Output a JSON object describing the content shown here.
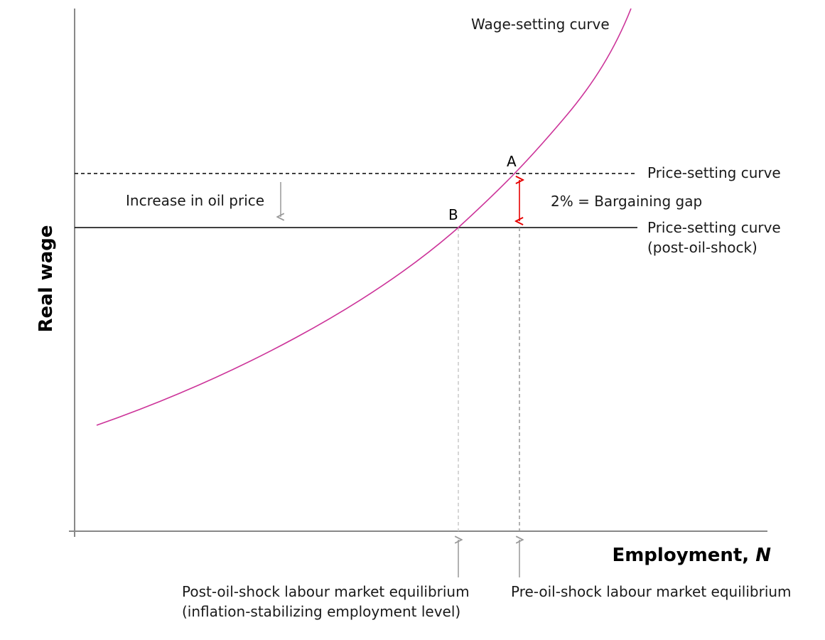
{
  "axes": {
    "y_title": "Real wage",
    "x_title_main": "Employment, ",
    "x_title_var": "N"
  },
  "curves": {
    "wage_setting": {
      "label": "Wage-setting curve",
      "color": "#cc3399"
    },
    "price_setting": {
      "label": "Price-setting curve"
    },
    "price_setting_post": {
      "line1": "Price-setting curve",
      "line2": "(post-oil-shock)"
    }
  },
  "points": {
    "a": "A",
    "b": "B"
  },
  "annotations": {
    "shock": "Increase in oil price",
    "gap": "2% = Bargaining gap",
    "gap_color": "#e60000"
  },
  "equilibria": {
    "post": {
      "line1": "Post-oil-shock labour market equilibrium",
      "line2": "(inflation-stabilizing employment level)"
    },
    "pre": {
      "line1": "Pre-oil-shock labour market equilibrium"
    }
  }
}
